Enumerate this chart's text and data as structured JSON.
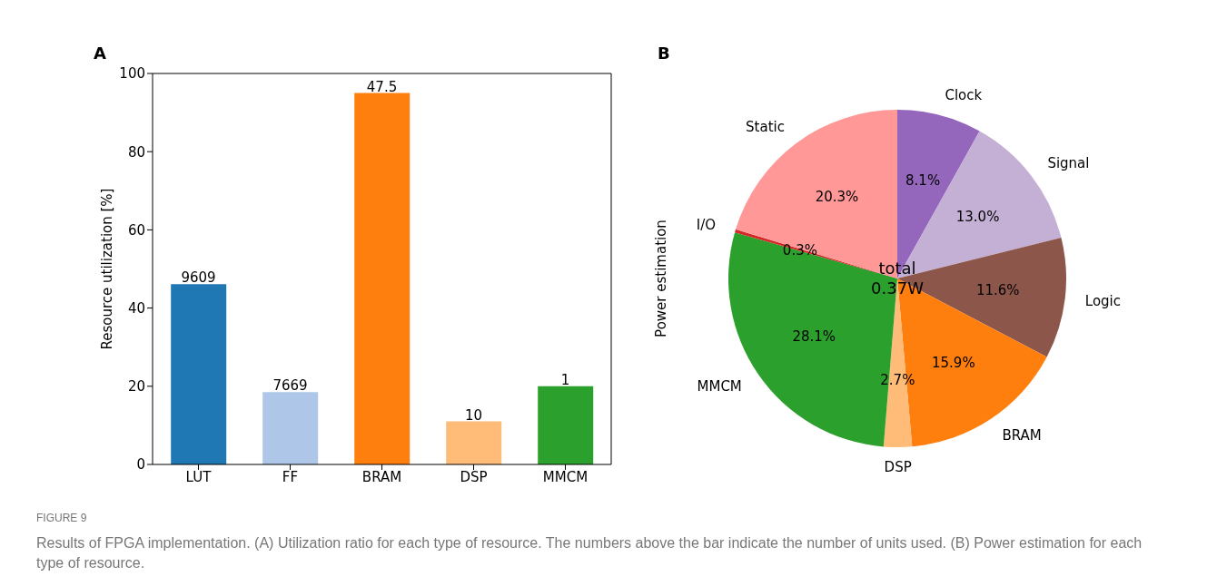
{
  "chart_data": [
    {
      "type": "bar",
      "title": "A",
      "ylabel": "Resource utilization [%]",
      "categories": [
        "LUT",
        "FF",
        "BRAM",
        "DSP",
        "MMCM"
      ],
      "values": [
        46.1,
        18.5,
        95.0,
        11.0,
        20.0
      ],
      "colors": [
        "#1f77b4",
        "#aec7e8",
        "#ff7f0e",
        "#ffbb78",
        "#2ca02c"
      ],
      "ylim": [
        0,
        100
      ],
      "yticks": [
        0,
        20,
        40,
        60,
        80,
        100
      ],
      "annotations": [
        {
          "text": "9609",
          "x": "LUT",
          "y": 46.1
        },
        {
          "text": "7669",
          "x": "FF",
          "y": 18.5
        },
        {
          "text": "47.5",
          "x": "BRAM",
          "y": 95.0
        },
        {
          "text": "10",
          "x": "DSP",
          "y": 11.0
        },
        {
          "text": "1",
          "x": "MMCM",
          "y": 20.0
        },
        "FIGURE 9",
        "Results of FPGA implementation. (A) Utilization ratio for each type of resource. The numbers above the bar indicate the number of units used. (B) Power estimation for each type of resource."
      ]
    },
    {
      "type": "pie",
      "title": "B",
      "ylabel": "Power estimation",
      "categories": [
        "Clock",
        "Signal",
        "Logic",
        "BRAM",
        "DSP",
        "MMCM",
        "I/O",
        "Static"
      ],
      "values": [
        8.1,
        13.0,
        11.6,
        15.9,
        2.7,
        28.1,
        0.3,
        20.3
      ],
      "colors": [
        "#9467bd",
        "#c5b0d5",
        "#8c564b",
        "#ff7f0e",
        "#ffbb78",
        "#2ca02c",
        "#d62728",
        "#ff9896"
      ],
      "value_labels": [
        "8.1%",
        "13.0%",
        "11.6%",
        "15.9%",
        "2.7%",
        "28.1%",
        "0.3%",
        "20.3%"
      ],
      "annotations": [
        "total\n0.37W"
      ]
    }
  ]
}
